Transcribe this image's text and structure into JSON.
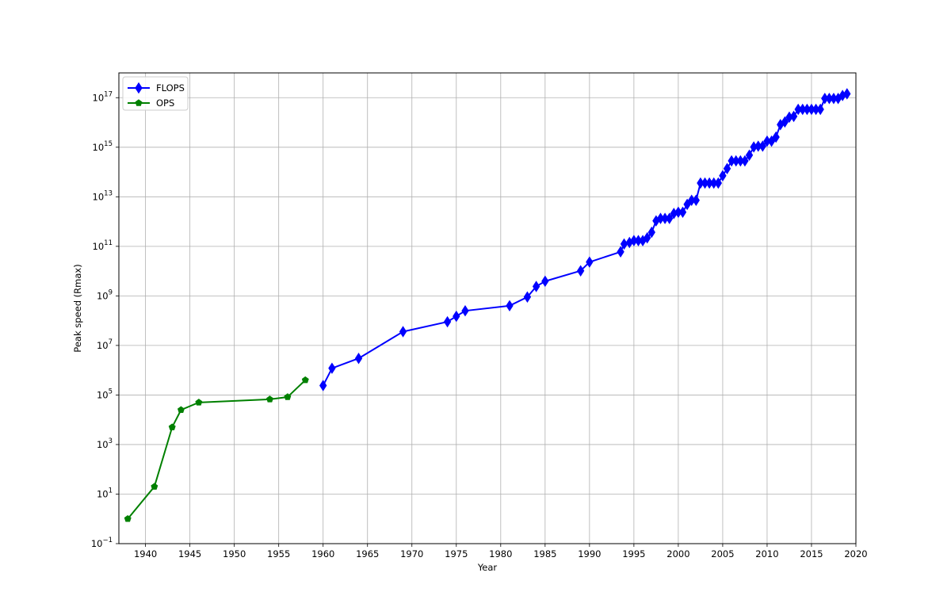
{
  "chart_data": {
    "type": "line",
    "title": "",
    "xlabel": "Year",
    "ylabel": "Peak speed (Rmax)",
    "xlim": [
      1937,
      2020
    ],
    "ylim_exponent": [
      -1,
      18
    ],
    "y_scale": "log",
    "grid": true,
    "legend_placement": "top-left",
    "x_ticks": [
      1940,
      1945,
      1950,
      1955,
      1960,
      1965,
      1970,
      1975,
      1980,
      1985,
      1990,
      1995,
      2000,
      2005,
      2010,
      2015,
      2020
    ],
    "y_ticks": [
      {
        "base": "10",
        "exp": "−1"
      },
      {
        "base": "10",
        "exp": "1"
      },
      {
        "base": "10",
        "exp": "3"
      },
      {
        "base": "10",
        "exp": "5"
      },
      {
        "base": "10",
        "exp": "7"
      },
      {
        "base": "10",
        "exp": "9"
      },
      {
        "base": "10",
        "exp": "11"
      },
      {
        "base": "10",
        "exp": "13"
      },
      {
        "base": "10",
        "exp": "15"
      },
      {
        "base": "10",
        "exp": "17"
      }
    ],
    "series": [
      {
        "name": "FLOPS",
        "color": "#0000ff",
        "marker": "diamond",
        "points": [
          [
            1960.0,
            240000
          ],
          [
            1961.0,
            1200000
          ],
          [
            1964.0,
            3000000
          ],
          [
            1969.0,
            36000000
          ],
          [
            1974.0,
            90000000
          ],
          [
            1975.0,
            150000000
          ],
          [
            1976.0,
            250000000
          ],
          [
            1981.0,
            400000000
          ],
          [
            1983.0,
            900000000
          ],
          [
            1984.0,
            2400000000
          ],
          [
            1985.0,
            3900000000
          ],
          [
            1989.0,
            10300000000
          ],
          [
            1990.0,
            23200000000
          ],
          [
            1993.5,
            60000000000
          ],
          [
            1993.9,
            124000000000
          ],
          [
            1994.5,
            143000000000
          ],
          [
            1995.0,
            170000000000
          ],
          [
            1995.5,
            170000000000
          ],
          [
            1996.0,
            170000000000
          ],
          [
            1996.5,
            220000000000
          ],
          [
            1997.0,
            368000000000
          ],
          [
            1997.5,
            1068000000000
          ],
          [
            1998.0,
            1338000000000
          ],
          [
            1998.5,
            1338000000000
          ],
          [
            1999.0,
            1338000000000
          ],
          [
            1999.5,
            2121000000000
          ],
          [
            2000.0,
            2379000000000
          ],
          [
            2000.5,
            2379000000000
          ],
          [
            2001.0,
            4938000000000
          ],
          [
            2001.5,
            7226000000000
          ],
          [
            2002.0,
            7226000000000
          ],
          [
            2002.5,
            35860000000000
          ],
          [
            2003.0,
            35860000000000
          ],
          [
            2003.5,
            35860000000000
          ],
          [
            2004.0,
            35860000000000
          ],
          [
            2004.5,
            35860000000000
          ],
          [
            2005.0,
            70720000000000
          ],
          [
            2005.5,
            136800000000000
          ],
          [
            2006.0,
            280600000000000
          ],
          [
            2006.5,
            280600000000000
          ],
          [
            2007.0,
            280600000000000
          ],
          [
            2007.5,
            280600000000000
          ],
          [
            2008.0,
            478200000000000
          ],
          [
            2008.5,
            1026000000000000
          ],
          [
            2009.0,
            1105000000000000
          ],
          [
            2009.5,
            1105000000000000
          ],
          [
            2010.0,
            1759000000000000
          ],
          [
            2010.5,
            1759000000000000
          ],
          [
            2011.0,
            2566000000000000
          ],
          [
            2011.5,
            8162000000000000
          ],
          [
            2012.0,
            10510000000000000
          ],
          [
            2012.5,
            16320000000000000
          ],
          [
            2013.0,
            17590000000000000
          ],
          [
            2013.5,
            33860000000000000
          ],
          [
            2014.0,
            33860000000000000
          ],
          [
            2014.5,
            33860000000000000
          ],
          [
            2015.0,
            33860000000000000
          ],
          [
            2015.5,
            33860000000000000
          ],
          [
            2016.0,
            33860000000000000
          ],
          [
            2016.5,
            93010000000000000
          ],
          [
            2017.0,
            93010000000000000
          ],
          [
            2017.5,
            93010000000000000
          ],
          [
            2018.0,
            93010000000000000
          ],
          [
            2018.5,
            122300000000000000
          ],
          [
            2019.0,
            143500000000000000
          ]
        ]
      },
      {
        "name": "OPS",
        "color": "#008000",
        "marker": "pentagon",
        "points": [
          [
            1938,
            1
          ],
          [
            1941,
            20
          ],
          [
            1943,
            5000
          ],
          [
            1944,
            25000
          ],
          [
            1946,
            50000
          ],
          [
            1954,
            67000
          ],
          [
            1956,
            83000
          ],
          [
            1958,
            400000
          ]
        ]
      }
    ]
  }
}
